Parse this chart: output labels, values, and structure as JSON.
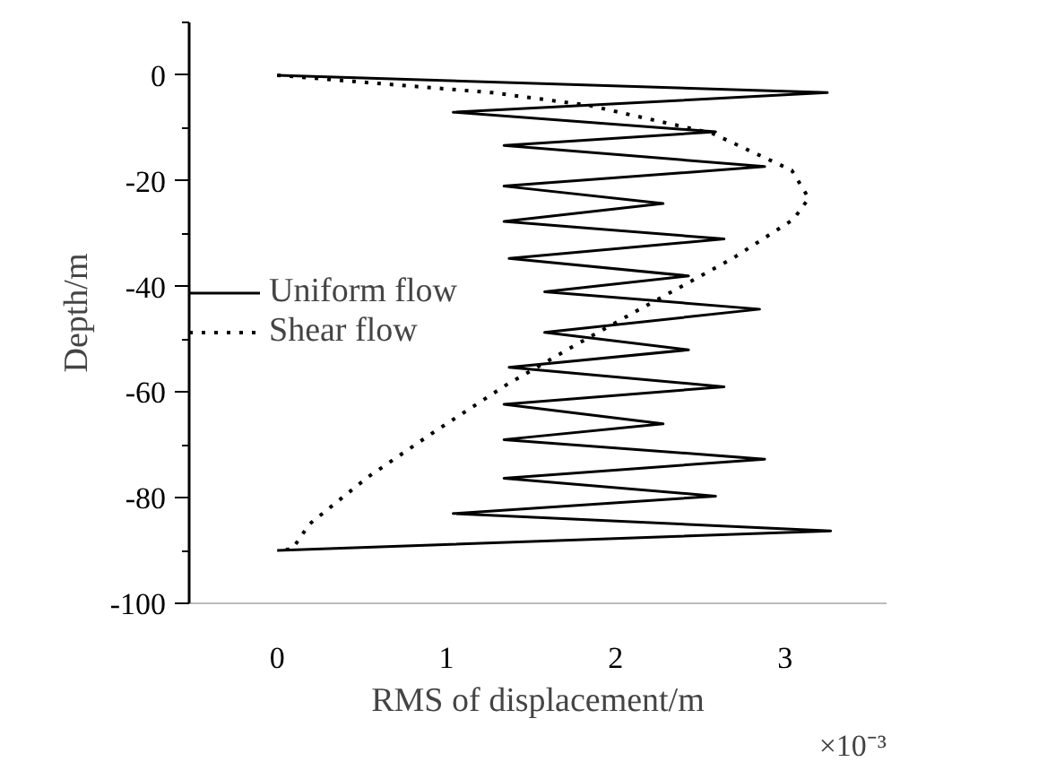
{
  "chart_data": {
    "type": "line",
    "xlabel": "RMS of displacement/m",
    "ylabel": "Depth/m",
    "xlim": [
      -0.52,
      3.6
    ],
    "xticks": [
      0,
      1,
      2,
      3
    ],
    "ylim": [
      -100,
      10
    ],
    "yticks": [
      -100,
      -80,
      -60,
      -40,
      -20,
      0
    ],
    "annotations": [
      "×10⁻³"
    ],
    "legend": "left",
    "grid": false,
    "marker": "none",
    "series": [
      {
        "name": "Uniform flow",
        "color": "#000000",
        "line_style": "solid",
        "x": [
          0,
          3.25,
          1.04,
          2.59,
          1.34,
          2.88,
          1.34,
          2.28,
          1.34,
          2.64,
          1.37,
          2.43,
          1.58,
          2.85,
          1.58,
          2.43,
          1.37,
          2.64,
          1.34,
          2.28,
          1.34,
          2.88,
          1.34,
          2.59,
          1.04,
          3.27,
          0
        ],
        "values": [
          0,
          -3.3,
          -7,
          -10.7,
          -13.3,
          -17.3,
          -21,
          -24.3,
          -27.7,
          -31,
          -34.7,
          -38,
          -41,
          -44.3,
          -48.7,
          -52,
          -55.3,
          -59,
          -62.3,
          -66,
          -69,
          -72.7,
          -76.3,
          -79.7,
          -83,
          -86.3,
          -90
        ]
      },
      {
        "name": "Shear flow",
        "color": "#000000",
        "line_style": "dotted",
        "x": [
          0,
          1.27,
          1.84,
          2.57,
          3.04,
          3.14,
          3.05,
          2.69,
          2.12,
          1.75,
          1.46,
          1.37,
          0.92,
          0.54,
          0.19,
          0.09,
          0
        ],
        "values": [
          0,
          -3.3,
          -5.7,
          -11,
          -18,
          -23.3,
          -27.3,
          -34.7,
          -44.7,
          -51.3,
          -56.7,
          -58.3,
          -67.7,
          -76,
          -85,
          -89.7,
          -90
        ]
      }
    ]
  }
}
